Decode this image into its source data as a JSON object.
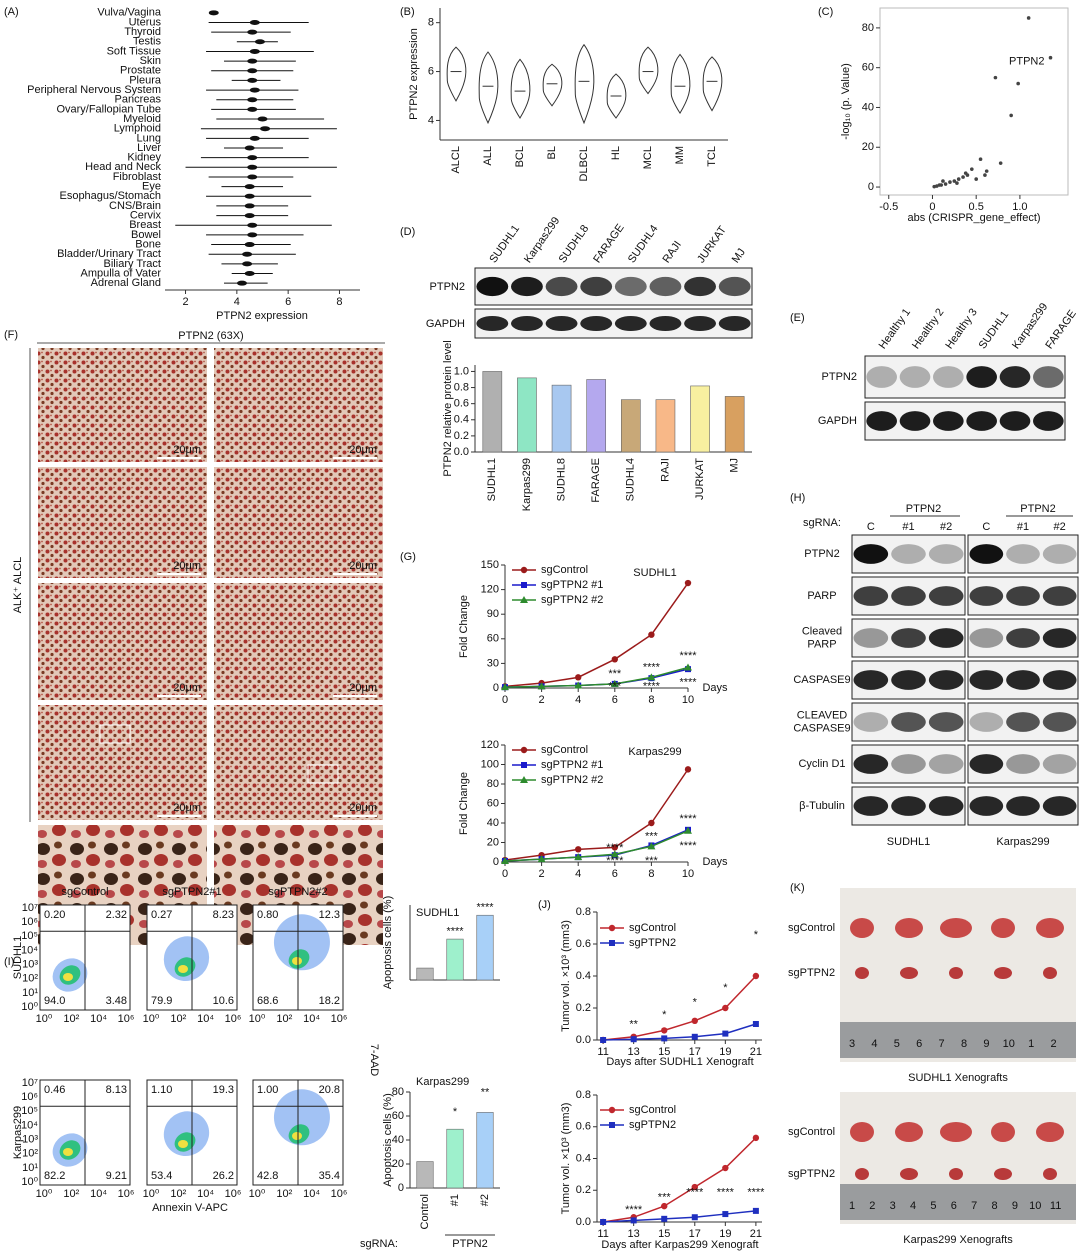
{
  "chart_data": [
    {
      "type": "range",
      "xlabel": "PTPN2 expression",
      "categories": [
        "Vulva/Vagina",
        "Uterus",
        "Thyroid",
        "Testis",
        "Soft Tissue",
        "Skin",
        "Prostate",
        "Pleura",
        "Peripheral Nervous System",
        "Pancreas",
        "Ovary/Fallopian Tube",
        "Myeloid",
        "Lymphoid",
        "Lung",
        "Liver",
        "Kidney",
        "Head and Neck",
        "Fibroblast",
        "Eye",
        "Esophagus/Stomach",
        "CNS/Brain",
        "Cervix",
        "Breast",
        "Bowel",
        "Bone",
        "Bladder/Urinary Tract",
        "Biliary Tract",
        "Ampulla of Vater",
        "Adrenal Gland"
      ],
      "values": [
        3.1,
        4.7,
        4.6,
        4.9,
        4.7,
        4.6,
        4.6,
        4.6,
        4.7,
        4.6,
        4.6,
        5.0,
        5.1,
        4.7,
        4.5,
        4.6,
        4.6,
        4.6,
        4.5,
        4.5,
        4.5,
        4.5,
        4.6,
        4.6,
        4.5,
        4.4,
        4.4,
        4.5,
        4.2
      ],
      "low": [
        3.0,
        2.9,
        3.0,
        4.0,
        2.8,
        3.5,
        3.0,
        3.8,
        2.8,
        3.2,
        3.0,
        3.2,
        2.6,
        2.8,
        3.5,
        2.6,
        2.0,
        2.9,
        3.4,
        2.8,
        3.2,
        3.2,
        1.6,
        2.8,
        3.0,
        2.9,
        3.4,
        3.8,
        3.5
      ],
      "high": [
        3.2,
        6.8,
        6.1,
        5.6,
        7.0,
        6.3,
        6.2,
        5.7,
        6.4,
        6.2,
        6.3,
        7.4,
        7.9,
        6.8,
        5.8,
        6.8,
        7.9,
        6.2,
        5.8,
        6.9,
        6.0,
        6.0,
        7.7,
        6.6,
        6.1,
        6.3,
        5.6,
        5.4,
        5.2
      ],
      "xlim": [
        1.2,
        8.8
      ],
      "xticks": [
        2,
        4,
        6,
        8
      ],
      "highlight_index": 12,
      "highlight_color": "#e00000",
      "color": "#111111"
    },
    {
      "type": "violin",
      "ylabel": "PTPN2 expression",
      "categories": [
        "ALCL",
        "ALL",
        "BCL",
        "BL",
        "DLBCL",
        "HL",
        "MCL",
        "MM",
        "TCL"
      ],
      "values": [
        6.0,
        5.4,
        5.2,
        5.5,
        5.6,
        5.0,
        6.0,
        5.4,
        5.6
      ],
      "low": [
        4.8,
        3.9,
        4.1,
        4.6,
        3.9,
        4.1,
        5.1,
        4.3,
        4.4
      ],
      "high": [
        7.0,
        6.8,
        6.5,
        6.3,
        7.1,
        5.9,
        7.0,
        6.7,
        6.6
      ],
      "ylim": [
        3.2,
        8.6
      ],
      "yticks": [
        4,
        6,
        8
      ],
      "rotate_labels": true,
      "highlight_index": 0,
      "highlight_color": "#e00000",
      "color": "#333333"
    },
    {
      "type": "scatter",
      "xlabel": "abs (CRISPR_gene_effect)",
      "ylabel": "-log₁₀ (p. Value)",
      "x": [
        1.35,
        1.1,
        0.72,
        0.9,
        0.98,
        0.78,
        0.55,
        0.62,
        0.45,
        0.4,
        0.35,
        0.3,
        0.25,
        0.2,
        0.15,
        0.1,
        0.05,
        0.02,
        0.5,
        0.28,
        0.38,
        0.12,
        0.08,
        0.6
      ],
      "y": [
        65,
        85,
        55,
        36,
        52,
        12,
        14,
        8,
        9,
        6,
        5,
        4,
        3,
        2.5,
        1.5,
        1,
        0.5,
        0.2,
        4,
        2,
        7,
        3,
        1,
        6
      ],
      "xlim": [
        -0.6,
        1.55
      ],
      "ylim": [
        -4,
        90
      ],
      "xticks": [
        -0.5,
        0,
        0.5,
        {
          "value": 1,
          "label": "1.0"
        }
      ],
      "yticks": [
        0,
        20,
        40,
        60,
        80
      ],
      "point_label": {
        "index": 0,
        "text": "PTPN2",
        "color": "#e00000"
      },
      "color": "#444444"
    },
    {
      "type": "bar",
      "ylabel": "PTPN2 relative protein level",
      "categories": [
        "SUDHL1",
        "Karpas299",
        "SUDHL8",
        "FARAGE",
        "SUDHL4",
        "RAJI",
        "JURKAT",
        "MJ"
      ],
      "values": [
        1.0,
        0.92,
        0.83,
        0.9,
        0.65,
        0.65,
        0.82,
        0.69
      ],
      "colors": [
        "#b0b0b0",
        "#8ee6c4",
        "#a8c8f0",
        "#b4a8ee",
        "#c8a878",
        "#f8b888",
        "#f8f0a0",
        "#d8a060"
      ],
      "ylim": [
        0,
        1.08
      ],
      "yticks": [
        {
          "value": 0,
          "label": "0.0"
        },
        0.2,
        0.4,
        0.6,
        0.8,
        {
          "value": 1,
          "label": "1.0"
        }
      ],
      "rotate_labels": true
    },
    {
      "type": "line",
      "title": "SUDHL1",
      "xlabel": "Days",
      "ylabel": "Fold Change",
      "x": [
        0,
        2,
        4,
        6,
        8,
        10
      ],
      "xlim": [
        0,
        10
      ],
      "xticks": [
        0,
        2,
        4,
        6,
        8,
        10
      ],
      "ylim": [
        0,
        150
      ],
      "yticks": [
        0,
        30,
        60,
        90,
        120,
        150
      ],
      "series": [
        {
          "name": "sgControl",
          "color": "#9b1b1b",
          "text_color": "#111111",
          "marker": "circle",
          "values": [
            2,
            6,
            13,
            35,
            65,
            128
          ]
        },
        {
          "name": "sgPTPN2 #1",
          "color": "#1a1acc",
          "marker": "square",
          "values": [
            1,
            2,
            3,
            5,
            12,
            23
          ]
        },
        {
          "name": "sgPTPN2 #2",
          "color": "#2e8b2e",
          "marker": "triangle",
          "values": [
            1,
            2,
            3,
            5,
            13,
            25
          ]
        }
      ],
      "annotations": [
        {
          "text": "***",
          "at": [
            6,
            12
          ],
          "color": "#1a1acc"
        },
        {
          "text": "****",
          "at": [
            8,
            20
          ],
          "color": "#1a1acc"
        },
        {
          "text": "****",
          "at": [
            10,
            34
          ],
          "color": "#1a1acc"
        },
        {
          "text": "***",
          "at": [
            6,
            -3
          ],
          "color": "#2e8b2e"
        },
        {
          "text": "****",
          "at": [
            8,
            -3
          ],
          "color": "#2e8b2e"
        },
        {
          "text": "****",
          "at": [
            10,
            2
          ],
          "color": "#2e8b2e"
        }
      ]
    },
    {
      "type": "line",
      "title": "Karpas299",
      "xlabel": "Days",
      "ylabel": "Fold Change",
      "x": [
        0,
        2,
        4,
        6,
        8,
        10
      ],
      "xlim": [
        0,
        10
      ],
      "xticks": [
        0,
        2,
        4,
        6,
        8,
        10
      ],
      "ylim": [
        0,
        120
      ],
      "yticks": [
        0,
        20,
        40,
        60,
        80,
        100,
        120
      ],
      "series": [
        {
          "name": "sgControl",
          "color": "#9b1b1b",
          "text_color": "#111111",
          "marker": "circle",
          "values": [
            2,
            7,
            13,
            15,
            40,
            95
          ]
        },
        {
          "name": "sgPTPN2 #1",
          "color": "#1a1acc",
          "marker": "square",
          "values": [
            1,
            3,
            5,
            7,
            17,
            33
          ]
        },
        {
          "name": "sgPTPN2 #2",
          "color": "#2e8b2e",
          "marker": "triangle",
          "values": [
            1,
            3,
            5,
            8,
            16,
            32
          ]
        }
      ],
      "annotations": [
        {
          "text": "****",
          "at": [
            6,
            10
          ],
          "color": "#1a1acc"
        },
        {
          "text": "***",
          "at": [
            8,
            22
          ],
          "color": "#1a1acc"
        },
        {
          "text": "****",
          "at": [
            10,
            40
          ],
          "color": "#1a1acc"
        },
        {
          "text": "****",
          "at": [
            6,
            -3
          ],
          "color": "#2e8b2e"
        },
        {
          "text": "***",
          "at": [
            8,
            -3
          ],
          "color": "#2e8b2e"
        },
        {
          "text": "****",
          "at": [
            10,
            12
          ],
          "color": "#2e8b2e"
        }
      ]
    },
    {
      "type": "bar",
      "title": "SUDHL1",
      "ylabel": "Apoptosis cells (%)",
      "categories": [
        null,
        null,
        null
      ],
      "values": [
        7,
        24,
        38
      ],
      "colors": [
        "#b8b8b8",
        "#9ef0cc",
        "#a8d0f8"
      ],
      "ylim": [
        0,
        44
      ],
      "annotations": [
        {
          "text": "****",
          "at": [
            1,
            26
          ]
        },
        {
          "text": "****",
          "at": [
            2,
            40
          ]
        }
      ]
    },
    {
      "type": "bar",
      "title": "Karpas299",
      "ylabel": "Apoptosis cells (%)",
      "categories": [
        "Control",
        "#1",
        "#2"
      ],
      "values": [
        22,
        49,
        63
      ],
      "colors": [
        "#b8b8b8",
        "#9ef0cc",
        "#a8d0f8"
      ],
      "ylim": [
        0,
        80
      ],
      "yticks": [
        0,
        20,
        40,
        60,
        80
      ],
      "rotate_labels": true,
      "row_label": "sgRNA:",
      "group_label": "PTPN2",
      "annotations": [
        {
          "text": "*",
          "at": [
            1,
            60
          ]
        },
        {
          "text": "**",
          "at": [
            2,
            76
          ]
        }
      ]
    },
    {
      "type": "line",
      "xlabel": "Days after SUDHL1 Xenograft",
      "ylabel": "Tumor vol. ×10³ (mm3)",
      "x": [
        11,
        13,
        15,
        17,
        19,
        21
      ],
      "xlim": [
        10.6,
        21.4
      ],
      "xticks": [
        11,
        13,
        15,
        17,
        19,
        21
      ],
      "ylim": [
        0,
        0.8
      ],
      "yticks": [
        {
          "value": 0,
          "label": "0.0"
        },
        0.2,
        0.4,
        0.6,
        0.8
      ],
      "series": [
        {
          "name": "sgControl",
          "color": "#c0272d",
          "text_color": "#111111",
          "marker": "circle",
          "values": [
            0,
            0.02,
            0.06,
            0.12,
            0.2,
            0.4
          ]
        },
        {
          "name": "sgPTPN2",
          "color": "#1f2fbf",
          "text_color": "#111111",
          "marker": "square",
          "values": [
            0,
            0.005,
            0.01,
            0.02,
            0.04,
            0.1
          ]
        }
      ],
      "annotations": [
        {
          "text": "**",
          "at": [
            13,
            0.07
          ]
        },
        {
          "text": "*",
          "at": [
            15,
            0.13
          ]
        },
        {
          "text": "*",
          "at": [
            17,
            0.21
          ]
        },
        {
          "text": "*",
          "at": [
            19,
            0.3
          ]
        },
        {
          "text": "*",
          "at": [
            21,
            0.63
          ]
        }
      ]
    },
    {
      "type": "line",
      "xlabel": "Days after Karpas299 Xenograft",
      "ylabel": "Tumor vol. ×10³ (mm3)",
      "x": [
        11,
        13,
        15,
        17,
        19,
        21
      ],
      "xlim": [
        10.6,
        21.4
      ],
      "xticks": [
        11,
        13,
        15,
        17,
        19,
        21
      ],
      "ylim": [
        0,
        0.8
      ],
      "yticks": [
        {
          "value": 0,
          "label": "0.0"
        },
        0.2,
        0.4,
        0.6,
        0.8
      ],
      "series": [
        {
          "name": "sgControl",
          "color": "#c0272d",
          "text_color": "#111111",
          "marker": "circle",
          "values": [
            0,
            0.03,
            0.1,
            0.22,
            0.34,
            0.53
          ]
        },
        {
          "name": "sgPTPN2",
          "color": "#1f2fbf",
          "text_color": "#111111",
          "marker": "square",
          "values": [
            0,
            0.01,
            0.02,
            0.03,
            0.05,
            0.07
          ]
        }
      ],
      "annotations": [
        {
          "text": "****",
          "at": [
            13,
            0.05
          ]
        },
        {
          "text": "***",
          "at": [
            15,
            0.13
          ]
        },
        {
          "text": "****",
          "at": [
            17,
            0.16
          ]
        },
        {
          "text": "****",
          "at": [
            19,
            0.16
          ]
        },
        {
          "text": "****",
          "at": [
            21,
            0.16
          ]
        }
      ]
    }
  ],
  "panels": [
    "(A)",
    "(B)",
    "(C)",
    "(D)",
    "(E)",
    "(F)",
    "(G)",
    "(H)",
    "(I)",
    "(J)",
    "(K)"
  ],
  "blot_D": {
    "lanes": [
      "SUDHL1",
      "Karpas299",
      "SUDHL8",
      "FARAGE",
      "SUDHL4",
      "RAJI",
      "JURKAT",
      "MJ"
    ],
    "rows": [
      "PTPN2",
      "GAPDH"
    ]
  },
  "blot_E": {
    "lanes": [
      "Healthy 1",
      "Healthy 2",
      "Healthy 3",
      "SUDHL1",
      "Karpas299",
      "FARAGE"
    ],
    "rows": [
      "PTPN2",
      "GAPDH"
    ]
  },
  "blot_H": {
    "sgrna": "sgRNA:",
    "group": "PTPN2",
    "lanes": [
      "C",
      "#1",
      "#2"
    ],
    "rows": [
      [
        "PTPN2"
      ],
      [
        "PARP"
      ],
      [
        "Cleaved",
        "PARP"
      ],
      [
        "CASPASE9"
      ],
      [
        "CLEAVED",
        "CASPASE9"
      ],
      [
        "Cyclin D1"
      ],
      [
        "β-Tubulin"
      ]
    ],
    "cell_lines": [
      "SUDHL1",
      "Karpas299"
    ]
  },
  "ihc": {
    "title": "PTPN2 (63X)",
    "side": "ALK⁺ ALCL",
    "scale": "20μm"
  },
  "flow": {
    "columns": [
      "sgControl",
      "sgPTPN2#1",
      "sgPTPN2#2"
    ],
    "rows": [
      "SUDHL1",
      "Karpas299"
    ],
    "quadrants": [
      [
        [
          "0.20",
          "2.32",
          "94.0",
          "3.48"
        ],
        [
          "0.27",
          "8.23",
          "79.9",
          "10.6"
        ],
        [
          "0.80",
          "12.3",
          "68.6",
          "18.2"
        ]
      ],
      [
        [
          "0.46",
          "8.13",
          "82.2",
          "9.21"
        ],
        [
          "1.10",
          "19.3",
          "53.4",
          "26.2"
        ],
        [
          "1.00",
          "20.8",
          "42.8",
          "35.4"
        ]
      ]
    ],
    "xticks": [
      "10⁰",
      "10²",
      "10⁴",
      "10⁶"
    ],
    "yticks": [
      "10⁰",
      "10¹",
      "10²",
      "10³",
      "10⁴",
      "10⁵",
      "10⁶",
      "10⁷"
    ],
    "xlabel": "Annexin V-APC",
    "ylabel": "7-AAD"
  },
  "xenograft": {
    "groups": [
      "sgControl",
      "sgPTPN2"
    ],
    "captions": [
      "SUDHL1 Xenografts",
      "Karpas299 Xenografts"
    ],
    "rulers": [
      [
        "3",
        "4",
        "5",
        "6",
        "7",
        "8",
        "9",
        "10",
        "1",
        "2"
      ],
      [
        "1",
        "2",
        "3",
        "4",
        "5",
        "6",
        "7",
        "8",
        "9",
        "10",
        "11"
      ]
    ]
  }
}
